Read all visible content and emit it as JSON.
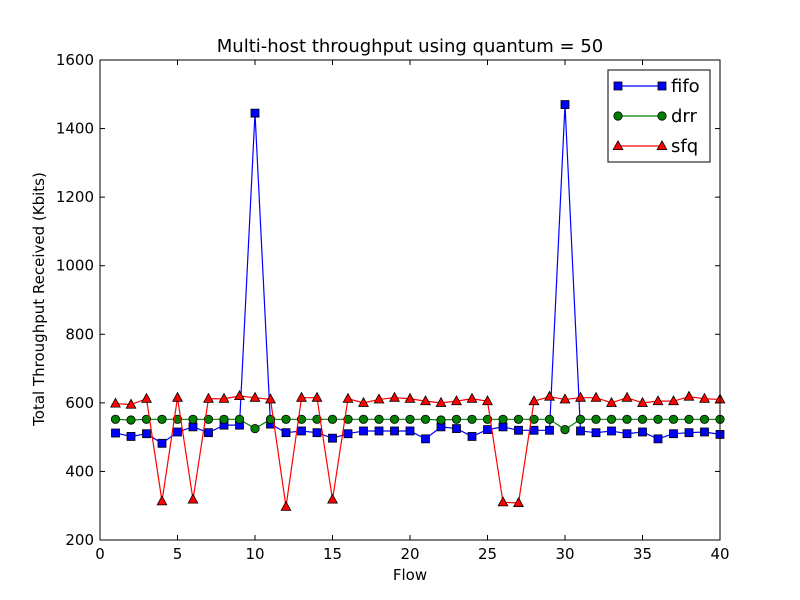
{
  "chart_data": {
    "type": "line",
    "title": "Multi-host throughput using quantum = 50",
    "xlabel": "Flow",
    "ylabel": "Total Throughput Received (Kbits)",
    "xlim": [
      0,
      40
    ],
    "ylim": [
      200,
      1600
    ],
    "xticks": [
      "0",
      "5",
      "10",
      "15",
      "20",
      "25",
      "30",
      "35",
      "40"
    ],
    "yticks": [
      "200",
      "400",
      "600",
      "800",
      "1000",
      "1200",
      "1400",
      "1600"
    ],
    "grid": false,
    "legend_position": "top-right",
    "x": [
      1,
      2,
      3,
      4,
      5,
      6,
      7,
      8,
      9,
      10,
      11,
      12,
      13,
      14,
      15,
      16,
      17,
      18,
      19,
      20,
      21,
      22,
      23,
      24,
      25,
      26,
      27,
      28,
      29,
      30,
      31,
      32,
      33,
      34,
      35,
      36,
      37,
      38,
      39,
      40
    ],
    "series": [
      {
        "name": "fifo",
        "color": "#0000ff",
        "marker": "square",
        "values": [
          512,
          502,
          510,
          482,
          515,
          530,
          513,
          535,
          535,
          1445,
          538,
          513,
          518,
          513,
          497,
          510,
          518,
          518,
          518,
          518,
          495,
          530,
          525,
          502,
          522,
          530,
          520,
          520,
          520,
          1470,
          518,
          513,
          518,
          510,
          515,
          495,
          510,
          513,
          515,
          508
        ]
      },
      {
        "name": "drr",
        "color": "#008000",
        "marker": "circle",
        "values": [
          552,
          550,
          552,
          552,
          552,
          552,
          552,
          552,
          552,
          525,
          552,
          552,
          552,
          552,
          552,
          552,
          552,
          552,
          552,
          552,
          552,
          550,
          552,
          552,
          552,
          552,
          552,
          552,
          552,
          522,
          552,
          552,
          552,
          552,
          552,
          552,
          552,
          552,
          552,
          552
        ]
      },
      {
        "name": "sfq",
        "color": "#ff0000",
        "marker": "triangle",
        "values": [
          598,
          595,
          612,
          313,
          615,
          318,
          612,
          612,
          620,
          615,
          610,
          297,
          615,
          615,
          318,
          612,
          600,
          610,
          615,
          612,
          605,
          600,
          605,
          612,
          605,
          310,
          308,
          605,
          618,
          610,
          615,
          615,
          600,
          615,
          600,
          605,
          605,
          618,
          612,
          610
        ]
      }
    ]
  }
}
